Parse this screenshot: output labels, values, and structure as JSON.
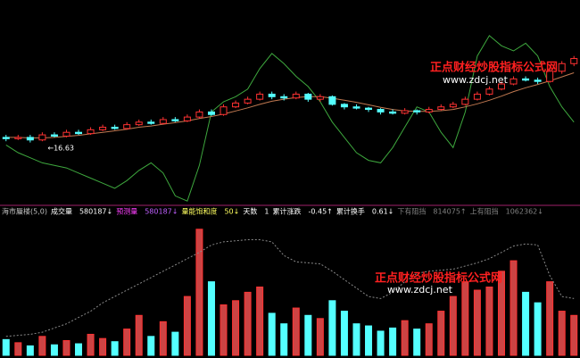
{
  "indicator_bar": [
    "海市蜃楼(5,0)",
    "成交量",
    "580187↓",
    "预测量",
    "580187↓",
    "量能饱和度",
    "50↓",
    "天数",
    "1",
    "累计涨跌",
    "-0.45↑",
    "累计换手",
    "0.61↓",
    "下有阻挡",
    "814075↑",
    "上有阻挡",
    "1062362↓"
  ],
  "watermarks": [
    {
      "title": "正点财经炒股指标公式网",
      "url": "www.zdcj.net"
    },
    {
      "title": "正点财经炒股指标公式网",
      "url": "www.zdcj.net"
    }
  ],
  "chart_data": [
    {
      "type": "candlestick",
      "annotation": "←16.63",
      "up_color": "#ff3232",
      "down_color": "#54ffff",
      "ylim": [
        14,
        22
      ],
      "open": [
        16.6,
        16.55,
        16.6,
        16.5,
        16.7,
        16.65,
        16.8,
        16.75,
        16.9,
        17.0,
        16.95,
        17.1,
        17.2,
        17.15,
        17.3,
        17.25,
        17.4,
        17.6,
        17.5,
        17.8,
        17.95,
        18.1,
        18.3,
        18.2,
        18.15,
        18.3,
        18.1,
        18.2,
        17.9,
        17.8,
        17.75,
        17.7,
        17.6,
        17.55,
        17.65,
        17.6,
        17.7,
        17.8,
        17.9,
        18.1,
        18.3,
        18.5,
        18.7,
        18.9,
        18.85,
        18.8,
        19.2,
        19.5
      ],
      "high": [
        16.7,
        16.7,
        16.7,
        16.8,
        16.8,
        16.9,
        16.9,
        17.0,
        17.1,
        17.1,
        17.2,
        17.3,
        17.3,
        17.4,
        17.4,
        17.5,
        17.7,
        17.7,
        17.9,
        18.05,
        18.2,
        18.4,
        18.4,
        18.3,
        18.4,
        18.35,
        18.3,
        18.25,
        17.95,
        17.9,
        17.8,
        17.75,
        17.7,
        17.75,
        17.7,
        17.8,
        17.9,
        18.0,
        18.2,
        18.4,
        18.6,
        18.8,
        19.0,
        19.0,
        18.95,
        19.3,
        19.6,
        19.8
      ],
      "low": [
        16.45,
        16.5,
        16.4,
        16.45,
        16.6,
        16.6,
        16.7,
        16.7,
        16.85,
        16.9,
        16.9,
        17.05,
        17.1,
        17.1,
        17.2,
        17.2,
        17.35,
        17.45,
        17.45,
        17.75,
        17.9,
        18.05,
        18.1,
        18.05,
        18.1,
        18.0,
        18.0,
        17.85,
        17.7,
        17.7,
        17.6,
        17.5,
        17.5,
        17.5,
        17.5,
        17.55,
        17.65,
        17.75,
        17.85,
        18.05,
        18.25,
        18.45,
        18.65,
        18.8,
        18.7,
        18.75,
        19.1,
        19.4
      ],
      "close": [
        16.55,
        16.6,
        16.5,
        16.7,
        16.65,
        16.8,
        16.75,
        16.9,
        17.0,
        16.95,
        17.1,
        17.2,
        17.15,
        17.3,
        17.25,
        17.4,
        17.6,
        17.5,
        17.8,
        17.95,
        18.1,
        18.3,
        18.2,
        18.15,
        18.3,
        18.1,
        18.2,
        17.9,
        17.8,
        17.75,
        17.7,
        17.6,
        17.55,
        17.65,
        17.6,
        17.7,
        17.8,
        17.9,
        18.1,
        18.3,
        18.5,
        18.7,
        18.9,
        18.85,
        18.8,
        19.2,
        19.5,
        19.7
      ],
      "series": [
        {
          "color": "#3ea83e",
          "values": [
            16.3,
            16.0,
            15.8,
            15.6,
            15.5,
            15.4,
            15.2,
            15.0,
            14.8,
            14.6,
            14.9,
            15.3,
            15.6,
            15.2,
            14.3,
            14.1,
            15.5,
            17.6,
            18.0,
            18.2,
            18.5,
            19.3,
            19.9,
            19.5,
            19.0,
            18.6,
            18.0,
            17.2,
            16.6,
            16.0,
            15.7,
            15.6,
            16.2,
            17.0,
            17.8,
            17.6,
            16.8,
            16.2,
            17.6,
            19.8,
            20.6,
            20.2,
            20.0,
            20.3,
            19.8,
            18.6,
            17.8,
            17.2
          ]
        },
        {
          "color": "#c07850",
          "values": [
            16.6,
            16.6,
            16.58,
            16.58,
            16.6,
            16.64,
            16.68,
            16.74,
            16.8,
            16.86,
            16.92,
            17.0,
            17.05,
            17.12,
            17.18,
            17.25,
            17.34,
            17.42,
            17.52,
            17.64,
            17.76,
            17.9,
            18.02,
            18.1,
            18.17,
            18.2,
            18.2,
            18.14,
            18.06,
            17.98,
            17.88,
            17.78,
            17.7,
            17.64,
            17.62,
            17.62,
            17.65,
            17.7,
            17.8,
            17.92,
            18.06,
            18.22,
            18.4,
            18.55,
            18.68,
            18.82,
            18.98,
            19.14
          ]
        }
      ]
    },
    {
      "type": "bar",
      "ylim": [
        0,
        1300000
      ],
      "values": [
        150000,
        120000,
        90000,
        180000,
        100000,
        140000,
        110000,
        200000,
        160000,
        130000,
        250000,
        380000,
        180000,
        320000,
        220000,
        560000,
        1200000,
        700000,
        480000,
        520000,
        600000,
        650000,
        400000,
        300000,
        450000,
        380000,
        350000,
        520000,
        420000,
        300000,
        280000,
        230000,
        260000,
        330000,
        250000,
        300000,
        420000,
        560000,
        700000,
        620000,
        650000,
        800000,
        900000,
        600000,
        500000,
        700000,
        420000,
        380000
      ],
      "series": [
        {
          "color": "#8a8a8a",
          "values": [
            180000,
            190000,
            200000,
            220000,
            260000,
            300000,
            360000,
            420000,
            500000,
            560000,
            620000,
            680000,
            740000,
            800000,
            860000,
            920000,
            980000,
            1050000,
            1080000,
            1090000,
            1100000,
            1100000,
            1080000,
            950000,
            890000,
            880000,
            870000,
            800000,
            720000,
            640000,
            560000,
            540000,
            600000,
            700000,
            780000,
            800000,
            810000,
            820000,
            850000,
            880000,
            920000,
            980000,
            1040000,
            1060000,
            1050000,
            760000,
            560000,
            540000
          ]
        }
      ]
    }
  ]
}
